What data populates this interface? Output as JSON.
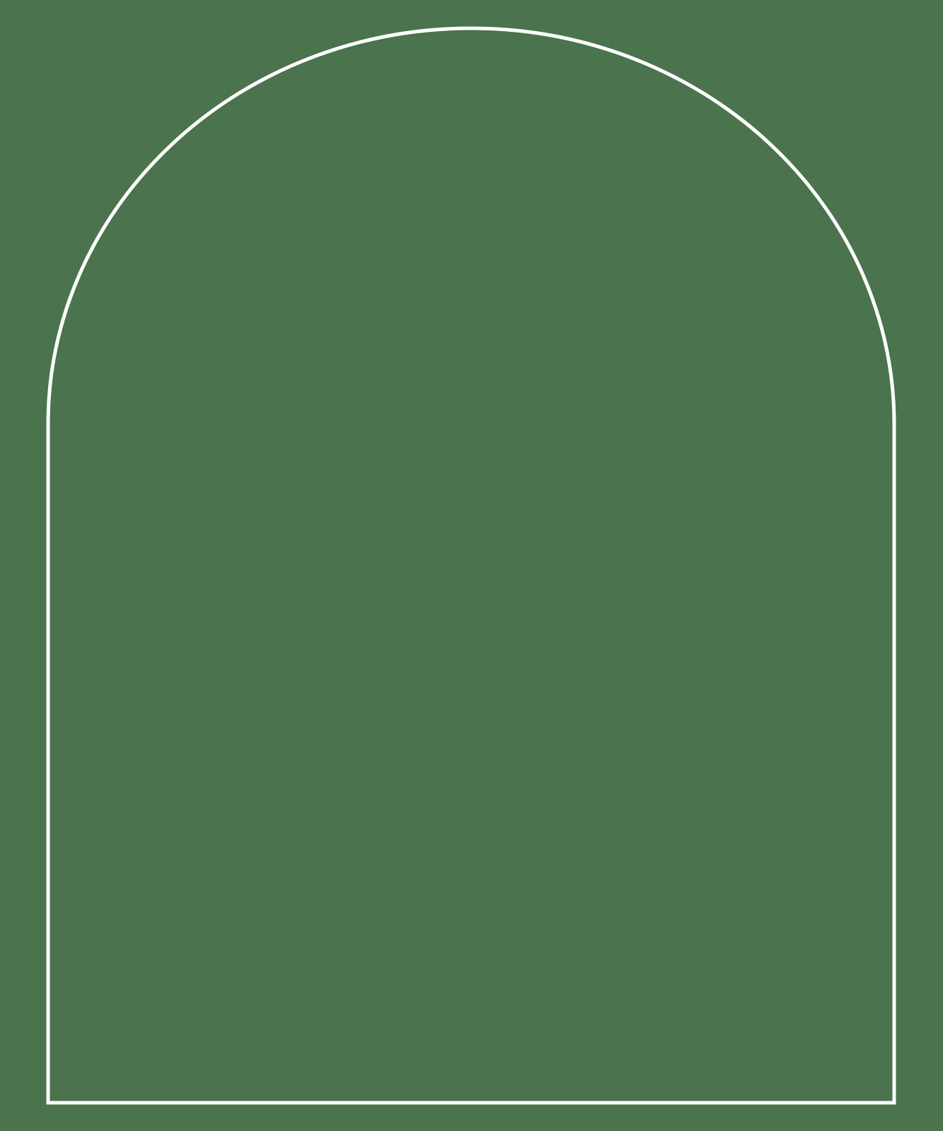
{
  "colors": {
    "background": "#4a734e",
    "arch_stroke": "#ffffff"
  },
  "shapes": [
    {
      "name": "arch-frame",
      "kind": "arch-outline"
    }
  ]
}
